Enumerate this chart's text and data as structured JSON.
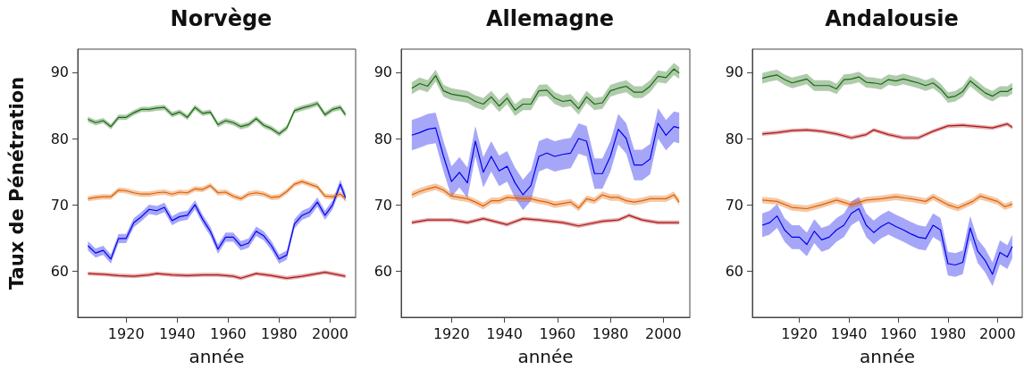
{
  "chart_data": [
    {
      "type": "line",
      "title": "Norvège",
      "xlabel": "année",
      "ylabel": "Taux de Pénétration",
      "xlim": [
        1901,
        2010
      ],
      "ylim": [
        53,
        93.5
      ],
      "xticks": [
        1920,
        1940,
        1960,
        1980,
        2000
      ],
      "yticks": [
        60,
        70,
        80,
        90
      ],
      "grid": false,
      "x": [
        1905,
        1908,
        1911,
        1914,
        1917,
        1920,
        1923,
        1926,
        1929,
        1932,
        1935,
        1938,
        1941,
        1944,
        1947,
        1950,
        1953,
        1956,
        1959,
        1962,
        1965,
        1968,
        1971,
        1974,
        1977,
        1980,
        1983,
        1986,
        1989,
        1992,
        1995,
        1998,
        2001,
        2004,
        2006
      ],
      "series": [
        {
          "color": "#0000ee",
          "values": [
            63.8,
            62.7,
            63.1,
            61.8,
            64.9,
            64.9,
            67.3,
            68.2,
            69.3,
            69.1,
            69.6,
            67.6,
            68.2,
            68.4,
            70.0,
            67.8,
            66.0,
            63.3,
            65.1,
            65.1,
            63.8,
            64.2,
            66.0,
            65.3,
            63.8,
            61.8,
            62.4,
            67.1,
            68.4,
            68.9,
            70.4,
            68.4,
            70.0,
            73.1,
            71.1
          ],
          "lower": [
            63.1,
            62.0,
            62.4,
            61.1,
            64.2,
            64.2,
            66.6,
            67.5,
            68.6,
            68.4,
            68.9,
            66.9,
            67.5,
            67.7,
            69.3,
            67.1,
            65.3,
            62.6,
            64.4,
            64.4,
            63.1,
            63.5,
            65.3,
            64.6,
            63.1,
            61.1,
            61.7,
            66.4,
            67.7,
            68.2,
            69.7,
            67.7,
            69.3,
            72.4,
            70.4
          ],
          "upper": [
            64.5,
            63.4,
            63.8,
            62.5,
            65.6,
            65.6,
            68.0,
            68.9,
            70.0,
            69.8,
            70.3,
            68.3,
            68.9,
            69.1,
            70.7,
            68.5,
            66.7,
            64.0,
            65.8,
            65.8,
            64.5,
            64.9,
            66.7,
            66.0,
            64.5,
            62.5,
            63.1,
            67.8,
            69.1,
            69.6,
            71.1,
            69.1,
            70.7,
            73.8,
            71.8
          ]
        },
        {
          "color": "#b01818",
          "x": [
            1905,
            1911,
            1917,
            1923,
            1929,
            1932,
            1938,
            1944,
            1950,
            1956,
            1962,
            1965,
            1971,
            1977,
            1983,
            1989,
            1995,
            1998,
            2006
          ],
          "values": [
            59.6,
            59.5,
            59.3,
            59.2,
            59.4,
            59.6,
            59.4,
            59.3,
            59.4,
            59.4,
            59.2,
            58.9,
            59.6,
            59.3,
            58.9,
            59.2,
            59.6,
            59.8,
            59.2
          ],
          "lower": [
            59.3,
            59.2,
            59.0,
            58.9,
            59.1,
            59.3,
            59.1,
            59.0,
            59.1,
            59.1,
            58.9,
            58.6,
            59.3,
            59.0,
            58.6,
            58.9,
            59.3,
            59.5,
            58.9
          ],
          "upper": [
            59.9,
            59.8,
            59.6,
            59.5,
            59.7,
            59.9,
            59.7,
            59.6,
            59.7,
            59.7,
            59.5,
            59.2,
            59.9,
            59.6,
            59.2,
            59.5,
            59.9,
            60.1,
            59.5
          ]
        },
        {
          "color": "#e06000",
          "values": [
            70.9,
            71.1,
            71.2,
            71.2,
            72.2,
            72.1,
            71.8,
            71.6,
            71.6,
            71.8,
            71.9,
            71.6,
            71.9,
            71.8,
            72.4,
            72.3,
            72.9,
            71.8,
            71.9,
            71.3,
            70.9,
            71.6,
            71.8,
            71.6,
            71.1,
            71.2,
            72.0,
            73.1,
            73.5,
            73.1,
            72.7,
            71.3,
            71.2,
            71.6,
            70.9
          ],
          "lower": [
            70.5,
            70.7,
            70.8,
            70.8,
            71.8,
            71.7,
            71.4,
            71.2,
            71.2,
            71.4,
            71.5,
            71.2,
            71.5,
            71.4,
            72.0,
            71.9,
            72.5,
            71.4,
            71.5,
            70.9,
            70.5,
            71.2,
            71.4,
            71.2,
            70.7,
            70.8,
            71.6,
            72.7,
            73.1,
            72.7,
            72.3,
            70.9,
            70.8,
            71.2,
            70.5
          ],
          "upper": [
            71.3,
            71.5,
            71.6,
            71.6,
            72.6,
            72.5,
            72.2,
            72.0,
            72.0,
            72.2,
            72.3,
            72.0,
            72.3,
            72.2,
            72.8,
            72.7,
            73.3,
            72.2,
            72.3,
            71.7,
            71.3,
            72.0,
            72.2,
            72.0,
            71.5,
            71.6,
            72.4,
            73.5,
            73.9,
            73.5,
            73.1,
            71.7,
            71.6,
            72.0,
            71.3
          ]
        },
        {
          "color": "#1a6a10",
          "values": [
            82.9,
            82.4,
            82.7,
            81.8,
            83.2,
            83.2,
            83.9,
            84.4,
            84.4,
            84.6,
            84.7,
            83.6,
            84.0,
            83.2,
            84.7,
            83.8,
            84.0,
            82.1,
            82.7,
            82.4,
            81.8,
            82.1,
            83.0,
            82.0,
            81.5,
            80.7,
            81.6,
            84.2,
            84.6,
            84.9,
            85.3,
            83.6,
            84.4,
            84.7,
            83.6
          ],
          "lower": [
            82.5,
            82.0,
            82.3,
            81.4,
            82.8,
            82.8,
            83.5,
            84.0,
            84.0,
            84.2,
            84.3,
            83.2,
            83.6,
            82.8,
            84.3,
            83.4,
            83.6,
            81.7,
            82.3,
            82.0,
            81.4,
            81.7,
            82.6,
            81.6,
            81.1,
            80.3,
            81.2,
            83.8,
            84.2,
            84.5,
            84.9,
            83.2,
            84.0,
            84.3,
            83.2
          ],
          "upper": [
            83.3,
            82.8,
            83.1,
            82.2,
            83.6,
            83.6,
            84.3,
            84.8,
            84.8,
            85.0,
            85.1,
            84.0,
            84.4,
            83.6,
            85.1,
            84.2,
            84.4,
            82.5,
            83.1,
            82.8,
            82.2,
            82.5,
            83.4,
            82.4,
            81.9,
            81.1,
            82.0,
            84.6,
            85.0,
            85.3,
            85.7,
            84.0,
            84.8,
            85.1,
            84.0
          ]
        }
      ]
    },
    {
      "type": "line",
      "title": "Allemagne",
      "xlabel": "année",
      "xlim": [
        1901,
        2010
      ],
      "ylim": [
        53,
        93.5
      ],
      "xticks": [
        1920,
        1940,
        1960,
        1980,
        2000
      ],
      "yticks": [
        60,
        70,
        80,
        90
      ],
      "grid": false,
      "x": [
        1905,
        1908,
        1911,
        1914,
        1917,
        1920,
        1923,
        1926,
        1929,
        1932,
        1935,
        1938,
        1941,
        1944,
        1947,
        1950,
        1953,
        1956,
        1959,
        1962,
        1965,
        1968,
        1971,
        1974,
        1977,
        1980,
        1983,
        1986,
        1989,
        1992,
        1995,
        1998,
        2001,
        2004,
        2006
      ],
      "series": [
        {
          "color": "#0000ee",
          "values": [
            80.5,
            80.9,
            81.4,
            81.6,
            77.3,
            73.5,
            74.9,
            73.3,
            79.6,
            74.9,
            77.3,
            75.1,
            75.8,
            73.3,
            71.5,
            72.9,
            77.3,
            77.8,
            77.3,
            77.6,
            77.8,
            80.0,
            79.6,
            74.7,
            74.7,
            77.3,
            81.4,
            80.0,
            76.0,
            76.0,
            76.9,
            82.3,
            80.5,
            81.8,
            81.6
          ],
          "lower": [
            78.2,
            78.6,
            79.1,
            79.3,
            75.0,
            71.2,
            72.6,
            71.0,
            77.3,
            72.6,
            75.0,
            72.8,
            73.5,
            71.0,
            69.2,
            70.6,
            75.0,
            75.5,
            75.0,
            75.3,
            75.5,
            77.7,
            77.3,
            72.4,
            72.4,
            75.0,
            79.1,
            77.7,
            73.7,
            73.7,
            74.6,
            80.0,
            78.2,
            79.5,
            79.3
          ],
          "upper": [
            82.8,
            83.2,
            83.7,
            83.9,
            79.6,
            75.8,
            77.2,
            75.6,
            81.9,
            77.2,
            79.6,
            77.4,
            78.1,
            75.6,
            73.8,
            75.2,
            79.6,
            80.1,
            79.6,
            79.9,
            80.1,
            82.3,
            81.9,
            77.0,
            77.0,
            79.6,
            83.7,
            82.3,
            78.3,
            78.3,
            79.2,
            84.6,
            82.8,
            84.1,
            83.9
          ]
        },
        {
          "color": "#b01818",
          "x": [
            1905,
            1911,
            1920,
            1926,
            1932,
            1941,
            1947,
            1953,
            1962,
            1968,
            1977,
            1983,
            1987,
            1992,
            1998,
            2006
          ],
          "values": [
            67.3,
            67.7,
            67.7,
            67.3,
            67.9,
            67.0,
            67.9,
            67.7,
            67.3,
            66.8,
            67.5,
            67.7,
            68.4,
            67.7,
            67.3,
            67.3
          ],
          "lower": [
            67.0,
            67.4,
            67.4,
            67.0,
            67.6,
            66.7,
            67.6,
            67.4,
            67.0,
            66.5,
            67.2,
            67.4,
            68.1,
            67.4,
            67.0,
            67.0
          ],
          "upper": [
            67.6,
            68.0,
            68.0,
            67.6,
            68.2,
            67.3,
            68.2,
            68.0,
            67.6,
            67.1,
            67.8,
            68.0,
            68.7,
            68.0,
            67.6,
            67.6
          ]
        },
        {
          "color": "#e06000",
          "values": [
            71.5,
            72.0,
            72.4,
            72.7,
            72.2,
            71.3,
            71.1,
            70.9,
            70.4,
            69.8,
            70.6,
            70.6,
            71.1,
            71.0,
            70.9,
            70.9,
            70.6,
            70.4,
            70.0,
            70.2,
            70.4,
            69.5,
            70.9,
            70.6,
            71.5,
            71.1,
            71.1,
            70.6,
            70.4,
            70.6,
            70.9,
            70.9,
            70.9,
            71.5,
            70.4
          ],
          "lower": [
            71.0,
            71.5,
            71.9,
            72.2,
            71.7,
            70.8,
            70.6,
            70.4,
            69.9,
            69.3,
            70.1,
            70.1,
            70.6,
            70.5,
            70.4,
            70.4,
            70.1,
            69.9,
            69.5,
            69.7,
            69.9,
            69.0,
            70.4,
            70.1,
            71.0,
            70.6,
            70.6,
            70.1,
            69.9,
            70.1,
            70.4,
            70.4,
            70.4,
            71.0,
            69.9
          ],
          "upper": [
            72.0,
            72.5,
            72.9,
            73.2,
            72.7,
            71.8,
            71.6,
            71.4,
            70.9,
            70.3,
            71.1,
            71.1,
            71.6,
            71.5,
            71.4,
            71.4,
            71.1,
            70.9,
            70.5,
            70.7,
            70.9,
            70.0,
            71.4,
            71.1,
            72.0,
            71.6,
            71.6,
            71.1,
            70.9,
            71.1,
            71.4,
            71.4,
            71.4,
            72.0,
            70.9
          ]
        },
        {
          "color": "#1a6a10",
          "values": [
            87.6,
            88.3,
            87.9,
            89.5,
            87.2,
            86.7,
            86.5,
            86.3,
            85.6,
            85.2,
            86.3,
            84.9,
            86.1,
            84.3,
            85.2,
            85.2,
            87.2,
            87.3,
            86.1,
            85.6,
            85.8,
            84.5,
            86.3,
            85.2,
            85.4,
            87.2,
            87.6,
            87.9,
            87.0,
            87.0,
            87.9,
            89.4,
            89.2,
            90.5,
            89.9
          ],
          "lower": [
            86.7,
            87.4,
            87.0,
            88.6,
            86.3,
            85.8,
            85.6,
            85.4,
            84.7,
            84.3,
            85.4,
            84.0,
            85.2,
            83.4,
            84.3,
            84.3,
            86.3,
            86.4,
            85.2,
            84.7,
            84.9,
            83.6,
            85.4,
            84.3,
            84.5,
            86.3,
            86.7,
            87.0,
            86.1,
            86.1,
            87.0,
            88.5,
            88.3,
            89.6,
            89.0
          ],
          "upper": [
            88.5,
            89.2,
            88.8,
            90.4,
            88.1,
            87.6,
            87.4,
            87.2,
            86.5,
            86.1,
            87.2,
            85.8,
            87.0,
            85.2,
            86.1,
            86.1,
            88.1,
            88.2,
            87.0,
            86.5,
            86.7,
            85.4,
            87.2,
            86.1,
            86.3,
            88.1,
            88.5,
            88.8,
            87.9,
            87.9,
            88.8,
            90.3,
            90.1,
            91.4,
            90.8
          ]
        }
      ]
    },
    {
      "type": "line",
      "title": "Andalousie",
      "xlabel": "année",
      "xlim": [
        1901,
        2010
      ],
      "ylim": [
        53,
        93.5
      ],
      "xticks": [
        1920,
        1940,
        1960,
        1980,
        2000
      ],
      "yticks": [
        60,
        70,
        80,
        90
      ],
      "grid": false,
      "x": [
        1905,
        1908,
        1911,
        1914,
        1917,
        1920,
        1923,
        1926,
        1929,
        1932,
        1935,
        1938,
        1941,
        1944,
        1947,
        1950,
        1953,
        1956,
        1959,
        1962,
        1965,
        1968,
        1971,
        1974,
        1977,
        1980,
        1983,
        1986,
        1989,
        1992,
        1995,
        1998,
        2001,
        2004,
        2006
      ],
      "series": [
        {
          "color": "#0000ee",
          "values": [
            66.9,
            67.3,
            68.3,
            66.2,
            65.1,
            65.1,
            64.0,
            66.0,
            64.7,
            65.1,
            66.2,
            66.9,
            68.7,
            69.4,
            66.9,
            65.8,
            66.7,
            67.3,
            66.7,
            66.2,
            65.6,
            65.1,
            64.9,
            66.9,
            66.2,
            61.1,
            60.9,
            61.3,
            66.5,
            63.0,
            61.6,
            59.5,
            62.8,
            62.1,
            63.7
          ],
          "lower": [
            65.1,
            65.5,
            66.5,
            64.4,
            63.3,
            63.3,
            62.2,
            64.2,
            62.9,
            63.3,
            64.4,
            65.1,
            66.9,
            67.6,
            65.1,
            64.0,
            64.9,
            65.5,
            64.9,
            64.4,
            63.8,
            63.3,
            63.1,
            65.1,
            64.4,
            59.3,
            59.1,
            59.5,
            64.7,
            61.2,
            59.8,
            57.7,
            61.0,
            60.3,
            61.9
          ],
          "upper": [
            68.7,
            69.1,
            70.1,
            68.0,
            66.9,
            66.9,
            65.8,
            67.8,
            66.5,
            66.9,
            68.0,
            68.7,
            70.5,
            71.2,
            68.7,
            67.6,
            68.5,
            69.1,
            68.5,
            68.0,
            67.4,
            66.9,
            66.7,
            68.7,
            68.0,
            62.9,
            62.7,
            63.1,
            68.3,
            64.8,
            63.4,
            61.3,
            64.6,
            63.9,
            65.5
          ]
        },
        {
          "color": "#b01818",
          "x": [
            1905,
            1911,
            1917,
            1923,
            1929,
            1935,
            1941,
            1947,
            1950,
            1956,
            1962,
            1968,
            1974,
            1980,
            1986,
            1992,
            1998,
            2004,
            2006
          ],
          "values": [
            80.7,
            80.9,
            81.2,
            81.3,
            81.1,
            80.7,
            80.1,
            80.6,
            81.3,
            80.6,
            80.1,
            80.1,
            81.1,
            81.9,
            82.0,
            81.8,
            81.6,
            82.2,
            81.7
          ],
          "lower": [
            80.4,
            80.6,
            80.9,
            81.0,
            80.8,
            80.4,
            79.8,
            80.3,
            81.0,
            80.3,
            79.8,
            79.8,
            80.8,
            81.6,
            81.7,
            81.5,
            81.3,
            81.9,
            81.4
          ],
          "upper": [
            81.0,
            81.2,
            81.5,
            81.6,
            81.4,
            81.0,
            80.4,
            80.9,
            81.6,
            80.9,
            80.4,
            80.4,
            81.4,
            82.2,
            82.3,
            82.1,
            81.9,
            82.5,
            82.0
          ]
        },
        {
          "color": "#e06000",
          "x": [
            1905,
            1911,
            1917,
            1923,
            1929,
            1935,
            1941,
            1947,
            1953,
            1959,
            1965,
            1971,
            1974,
            1980,
            1984,
            1990,
            1993,
            2000,
            2003,
            2006
          ],
          "values": [
            70.7,
            70.5,
            69.6,
            69.4,
            70.0,
            70.7,
            70.0,
            70.7,
            70.9,
            71.2,
            70.9,
            70.5,
            71.2,
            70.0,
            69.5,
            70.5,
            71.3,
            70.5,
            69.7,
            70.1
          ],
          "lower": [
            70.2,
            70.0,
            69.1,
            68.9,
            69.5,
            70.2,
            69.5,
            70.2,
            70.4,
            70.7,
            70.4,
            70.0,
            70.7,
            69.5,
            69.0,
            70.0,
            70.8,
            70.0,
            69.2,
            69.6
          ],
          "upper": [
            71.2,
            71.0,
            70.1,
            69.9,
            70.5,
            71.2,
            70.5,
            71.2,
            71.4,
            71.7,
            71.4,
            71.0,
            71.7,
            70.5,
            70.0,
            71.0,
            71.8,
            71.0,
            70.2,
            70.6
          ]
        },
        {
          "color": "#1a6a10",
          "values": [
            89.1,
            89.4,
            89.6,
            88.9,
            88.4,
            88.7,
            89.0,
            88.0,
            88.0,
            88.0,
            87.5,
            88.9,
            89.0,
            89.3,
            88.5,
            88.4,
            88.2,
            88.9,
            88.7,
            89.0,
            88.7,
            88.4,
            88.0,
            88.4,
            87.5,
            86.2,
            86.4,
            87.1,
            88.7,
            87.8,
            86.9,
            86.4,
            87.1,
            87.1,
            87.6
          ],
          "lower": [
            88.3,
            88.6,
            88.8,
            88.1,
            87.6,
            87.9,
            88.2,
            87.2,
            87.2,
            87.2,
            86.7,
            88.1,
            88.2,
            88.5,
            87.7,
            87.6,
            87.4,
            88.1,
            87.9,
            88.2,
            87.9,
            87.6,
            87.2,
            87.6,
            86.7,
            85.4,
            85.6,
            86.3,
            87.9,
            87.0,
            86.1,
            85.6,
            86.3,
            86.3,
            86.8
          ],
          "upper": [
            89.9,
            90.2,
            90.4,
            89.7,
            89.2,
            89.5,
            89.8,
            88.8,
            88.8,
            88.8,
            88.3,
            89.7,
            89.8,
            90.1,
            89.3,
            89.2,
            89.0,
            89.7,
            89.5,
            89.8,
            89.5,
            89.2,
            88.8,
            89.2,
            88.3,
            87.0,
            87.2,
            87.9,
            89.5,
            88.6,
            87.7,
            87.2,
            87.9,
            87.9,
            88.4
          ]
        }
      ]
    }
  ]
}
